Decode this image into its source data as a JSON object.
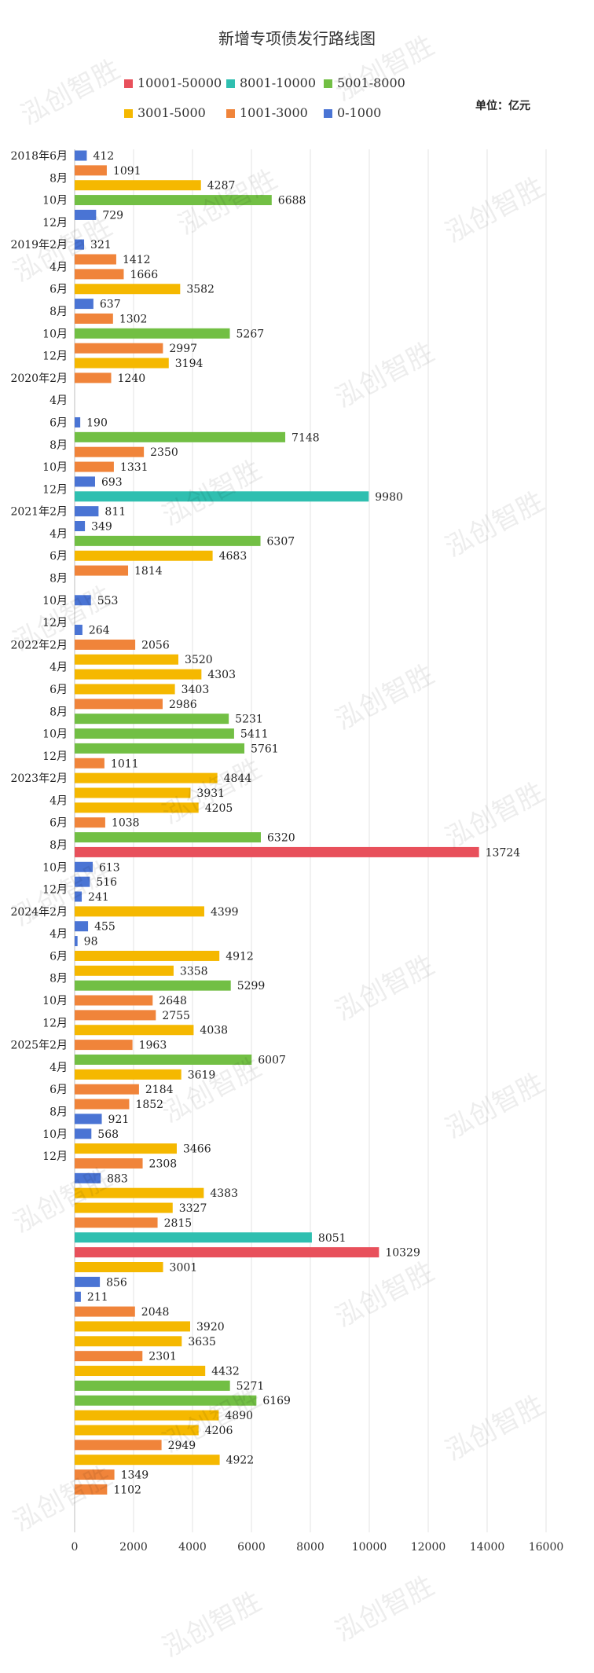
{
  "chart_data": {
    "type": "bar",
    "orientation": "horizontal",
    "title": "新增专项债发行路线图",
    "unit_label": "单位：亿元",
    "xlim": [
      0,
      16000
    ],
    "x_ticks": [
      0,
      2000,
      4000,
      6000,
      8000,
      10000,
      12000,
      14000,
      16000
    ],
    "grid": true,
    "legend_position": "top",
    "legend": [
      {
        "label": "10001-50000",
        "color": "#e8505b"
      },
      {
        "label": "8001-10000",
        "color": "#2fbfb0"
      },
      {
        "label": "5001-8000",
        "color": "#72bf44"
      },
      {
        "label": "3001-5000",
        "color": "#f5b800"
      },
      {
        "label": "1001-3000",
        "color": "#f0843a"
      },
      {
        "label": "0-1000",
        "color": "#4a74d4"
      }
    ],
    "category_labels": [
      "2018年6月",
      "8月",
      "10月",
      "12月",
      "2019年2月",
      "4月",
      "6月",
      "8月",
      "10月",
      "12月",
      "2020年2月",
      "4月",
      "6月",
      "8月",
      "10月",
      "12月",
      "2021年2月",
      "4月",
      "6月",
      "8月",
      "10月",
      "12月",
      "2022年2月",
      "4月",
      "6月",
      "8月",
      "10月",
      "12月",
      "2023年2月",
      "4月",
      "6月",
      "8月",
      "10月",
      "12月",
      "2024年2月",
      "4月",
      "6月",
      "8月",
      "10月",
      "12月",
      "2025年2月",
      "4月",
      "6月",
      "8月",
      "10月",
      "12月"
    ],
    "values": [
      412,
      1091,
      4287,
      6688,
      729,
      null,
      321,
      1412,
      1666,
      3582,
      637,
      1302,
      5267,
      2997,
      3194,
      1240,
      null,
      null,
      190,
      7148,
      2350,
      1331,
      693,
      9980,
      811,
      349,
      6307,
      4683,
      1814,
      null,
      553,
      null,
      264,
      2056,
      3520,
      4303,
      3403,
      2986,
      5231,
      5411,
      5761,
      1011,
      4844,
      3931,
      4205,
      1038,
      6320,
      13724,
      613,
      516,
      241,
      4399,
      455,
      98,
      4912,
      3358,
      5299,
      2648,
      2755,
      4038,
      1963,
      6007,
      3619,
      2184,
      1852,
      921,
      568,
      3466,
      2308,
      883,
      4383,
      3327,
      2815,
      8051,
      10329,
      3001,
      856,
      211,
      2048,
      3920,
      3635,
      2301,
      4432,
      5271,
      6169,
      4890,
      4206,
      2949,
      4922,
      1349,
      1102
    ]
  },
  "watermark_text": "泓创智胜"
}
